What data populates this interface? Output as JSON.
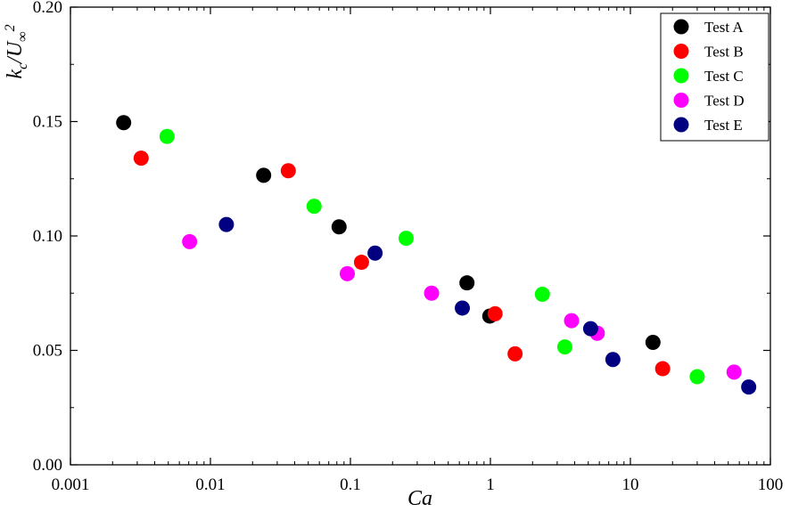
{
  "chart_data": {
    "type": "scatter",
    "xlabel": "Ca",
    "ylabel": "k_c/U_∞^2",
    "xscale": "log",
    "xlim": [
      0.001,
      100
    ],
    "ylim": [
      0.0,
      0.2
    ],
    "x_tick_labels": [
      "0.001",
      "0.01",
      "0.1",
      "1",
      "10",
      "100"
    ],
    "y_tick_labels": [
      "0.00",
      "0.05",
      "0.10",
      "0.15",
      "0.20"
    ],
    "legend_position": "top-right",
    "series": [
      {
        "name": "Test A",
        "color": "#000000",
        "x": [
          0.0024,
          0.024,
          0.083,
          0.68,
          0.99,
          14.5
        ],
        "y": [
          0.1495,
          0.1265,
          0.104,
          0.0795,
          0.065,
          0.0535
        ]
      },
      {
        "name": "Test B",
        "color": "#ff0000",
        "x": [
          0.0032,
          0.036,
          0.12,
          1.08,
          1.5,
          17.0
        ],
        "y": [
          0.134,
          0.1285,
          0.0885,
          0.066,
          0.0485,
          0.042
        ]
      },
      {
        "name": "Test C",
        "color": "#00ff00",
        "x": [
          0.0049,
          0.055,
          0.25,
          2.35,
          3.4,
          30.0
        ],
        "y": [
          0.1435,
          0.113,
          0.099,
          0.0745,
          0.0515,
          0.0385
        ]
      },
      {
        "name": "Test D",
        "color": "#ff00ff",
        "x": [
          0.0071,
          0.095,
          0.38,
          3.8,
          5.8,
          55.0
        ],
        "y": [
          0.0975,
          0.0835,
          0.075,
          0.063,
          0.0575,
          0.0405
        ]
      },
      {
        "name": "Test E",
        "color": "#000080",
        "x": [
          0.013,
          0.15,
          0.63,
          5.2,
          7.5,
          70.0
        ],
        "y": [
          0.105,
          0.0925,
          0.0685,
          0.0595,
          0.046,
          0.034
        ]
      }
    ]
  }
}
